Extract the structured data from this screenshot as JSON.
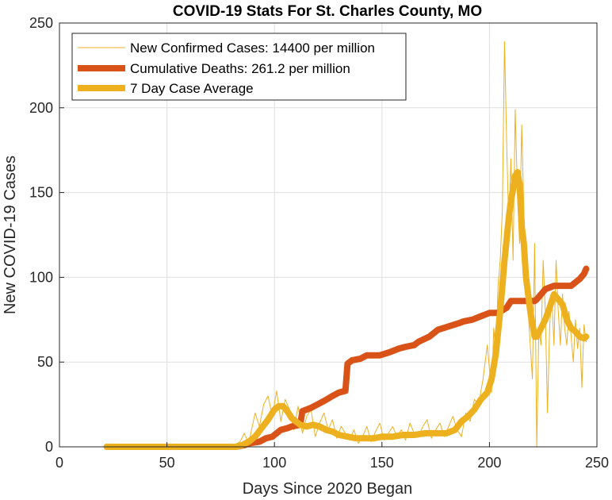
{
  "chart_data": {
    "type": "line",
    "title": "COVID-19 Stats For St. Charles County, MO",
    "xlabel": "Days Since 2020 Began",
    "ylabel": "New COVID-19 Cases",
    "xlim": [
      0,
      250
    ],
    "ylim": [
      0,
      250
    ],
    "xticks": [
      0,
      50,
      100,
      150,
      200,
      250
    ],
    "yticks": [
      0,
      50,
      100,
      150,
      200,
      250
    ],
    "grid": true,
    "legend_position": "top-left",
    "series": [
      {
        "name": "New Confirmed Cases: 14400 per million",
        "color": "#EDB120",
        "style": "thin",
        "x": [
          22,
          80,
          84,
          86,
          88,
          90,
          91,
          93,
          95,
          97,
          99,
          101,
          103,
          105,
          107,
          109,
          111,
          113,
          115,
          117,
          119,
          121,
          123,
          125,
          127,
          129,
          131,
          133,
          135,
          137,
          139,
          141,
          143,
          145,
          147,
          149,
          151,
          153,
          155,
          157,
          159,
          161,
          163,
          165,
          167,
          169,
          171,
          173,
          175,
          177,
          179,
          181,
          183,
          185,
          187,
          189,
          191,
          193,
          195,
          197,
          199,
          201,
          202,
          203,
          204,
          205,
          206,
          207,
          208,
          209,
          210,
          211,
          212,
          213,
          214,
          215,
          216,
          217,
          218,
          219,
          220,
          221,
          222,
          223,
          224,
          225,
          226,
          227,
          228,
          229,
          230,
          231,
          232,
          233,
          234,
          235,
          236,
          237,
          238,
          239,
          240,
          241,
          242,
          243,
          244,
          245
        ],
        "y": [
          0,
          0,
          3,
          8,
          2,
          14,
          20,
          12,
          25,
          30,
          18,
          33,
          15,
          28,
          22,
          10,
          24,
          8,
          18,
          22,
          6,
          14,
          20,
          10,
          16,
          5,
          12,
          8,
          4,
          10,
          2,
          6,
          12,
          3,
          9,
          14,
          4,
          8,
          12,
          6,
          10,
          4,
          14,
          8,
          6,
          12,
          16,
          5,
          10,
          14,
          6,
          12,
          18,
          10,
          6,
          20,
          15,
          28,
          25,
          40,
          60,
          32,
          70,
          55,
          95,
          110,
          140,
          239,
          180,
          130,
          170,
          110,
          199,
          150,
          120,
          190,
          140,
          100,
          80,
          60,
          40,
          120,
          0,
          70,
          60,
          110,
          80,
          20,
          70,
          90,
          60,
          110,
          80,
          60,
          90,
          70,
          60,
          80,
          65,
          50,
          75,
          58,
          70,
          35,
          72,
          62
        ]
      },
      {
        "name": "Cumulative Deaths: 261.2 per million",
        "color": "#D95319",
        "style": "thick",
        "x": [
          22,
          82,
          86,
          88,
          93,
          96,
          99,
          101,
          103,
          106,
          108,
          112,
          113,
          117,
          120,
          123,
          127,
          130,
          133,
          134,
          136,
          140,
          143,
          149,
          154,
          158,
          161,
          165,
          167,
          172,
          176,
          186,
          188,
          192,
          196,
          200,
          204,
          208,
          210,
          221,
          222,
          226,
          230,
          238,
          240,
          242,
          244,
          245
        ],
        "y": [
          0,
          0,
          1,
          2,
          3,
          5,
          6,
          8,
          10,
          11,
          12,
          13,
          21,
          23,
          25,
          27,
          30,
          32,
          33,
          49,
          51,
          52,
          54,
          54,
          56,
          58,
          59,
          60,
          62,
          65,
          69,
          73,
          74,
          75,
          77,
          79,
          79,
          82,
          86,
          86,
          87,
          93,
          95,
          95,
          97,
          99,
          102,
          105
        ]
      },
      {
        "name": "7 Day Case Average",
        "color": "#EDB120",
        "style": "thick",
        "x": [
          22,
          82,
          85,
          88,
          91,
          94,
          97,
          100,
          102,
          104,
          106,
          108,
          110,
          112,
          115,
          118,
          121,
          124,
          127,
          130,
          134,
          138,
          142,
          146,
          150,
          155,
          160,
          165,
          170,
          175,
          180,
          184,
          187,
          190,
          193,
          196,
          199,
          201,
          203,
          205,
          207,
          209,
          210,
          211,
          212,
          213,
          214,
          215,
          216,
          217,
          219,
          221,
          222,
          224,
          226,
          228,
          230,
          232,
          234,
          236,
          238,
          240,
          242,
          244,
          245
        ],
        "y": [
          0,
          0,
          1,
          3,
          6,
          11,
          16,
          22,
          24,
          24,
          21,
          17,
          15,
          13,
          12,
          13,
          12,
          10,
          9,
          7,
          6,
          5,
          5,
          5,
          6,
          6,
          7,
          7,
          8,
          8,
          8,
          10,
          15,
          18,
          22,
          28,
          32,
          40,
          55,
          80,
          110,
          135,
          145,
          152,
          160,
          162,
          155,
          130,
          120,
          100,
          80,
          65,
          65,
          70,
          75,
          82,
          90,
          87,
          84,
          75,
          70,
          68,
          65,
          64,
          65
        ]
      }
    ]
  }
}
